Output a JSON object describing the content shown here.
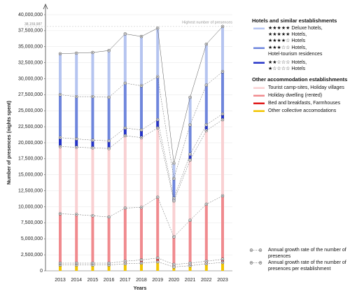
{
  "chart_data": {
    "type": "stacked-bar",
    "x_label": "Years",
    "y_label": "Number of presences (nights spent)",
    "categories": [
      "2013",
      "2014",
      "2015",
      "2016",
      "2017",
      "2018",
      "2019",
      "2020",
      "2021",
      "2022",
      "2023"
    ],
    "ylim": [
      0,
      40000000
    ],
    "yticks": [
      {
        "value": 0,
        "label": "0"
      },
      {
        "value": 2500000,
        "label": "2,500,000"
      },
      {
        "value": 5000000,
        "label": "5,000,000"
      },
      {
        "value": 7500000,
        "label": "7,500,000"
      },
      {
        "value": 10000000,
        "label": "10,000,000"
      },
      {
        "value": 12500000,
        "label": "12,500,000"
      },
      {
        "value": 15000000,
        "label": "15,000,000"
      },
      {
        "value": 17500000,
        "label": "17,500,000"
      },
      {
        "value": 20000000,
        "label": "20,000,000"
      },
      {
        "value": 22500000,
        "label": "22,500,000"
      },
      {
        "value": 25000000,
        "label": "25,000,000"
      },
      {
        "value": 27500000,
        "label": "27,500,000"
      },
      {
        "value": 30000000,
        "label": "30,000,000"
      },
      {
        "value": 32500000,
        "label": "32,500,000"
      },
      {
        "value": 35000000,
        "label": "35,000,000"
      },
      {
        "value": 37500000,
        "label": "37,500,000"
      },
      {
        "value": 40000000,
        "label": "40,000,000"
      }
    ],
    "grid": true,
    "series": [
      {
        "name": "Other collective accomodations",
        "color": "#f2c500",
        "values": [
          900000,
          900000,
          900000,
          900000,
          1100000,
          1200000,
          1400000,
          600000,
          800000,
          1100000,
          1300000
        ]
      },
      {
        "name": "Bed and breakfasts, Farmhouses",
        "color": "#e01a1a",
        "values": [
          300000,
          300000,
          300000,
          300000,
          400000,
          500000,
          600000,
          400000,
          400000,
          400000,
          500000
        ]
      },
      {
        "name": "Holiday dwelling (rented)",
        "color": "#f08a8e",
        "values": [
          7700000,
          7600000,
          7400000,
          7200000,
          8300000,
          8200000,
          9500000,
          4300000,
          6700000,
          8900000,
          9900000
        ]
      },
      {
        "name": "Tourist camp-sites, Holiday villages",
        "color": "#f9d0d2",
        "values": [
          10500000,
          10500000,
          10600000,
          10700000,
          11300000,
          10900000,
          10800000,
          5600000,
          9400000,
          11500000,
          11900000
        ]
      },
      {
        "name": "★★☆☆☆ Hotels,\n★☆☆☆☆ Hotels",
        "color": "#2433c8",
        "values": [
          1400000,
          1300000,
          1200000,
          1200000,
          1200000,
          1200000,
          1300000,
          400000,
          900000,
          900000,
          900000
        ]
      },
      {
        "name": "★★★☆☆ Hotels,\nHotel-tourism residences",
        "color": "#6f86dc",
        "values": [
          6700000,
          6600000,
          6800000,
          6800000,
          7000000,
          6900000,
          6700000,
          3100000,
          4600000,
          6200000,
          6600000
        ]
      },
      {
        "name": "★★★★★ Deluxe hotels,\n★★★★★ Hotels,\n★★★★☆ Hotels",
        "color": "#b5c4f0",
        "values": [
          6400000,
          6800000,
          6900000,
          7300000,
          7700000,
          7700000,
          7600000,
          2400000,
          4300000,
          6400000,
          7059987
        ]
      }
    ],
    "legend_titles": [
      "Hotels and similar establishments",
      "Other accommodation establishments"
    ],
    "legend_notes": [
      "Annual growth rate of the number of presences",
      "Annual growth rate of the number of presences per establishment"
    ],
    "annotation": {
      "text": "Highest number of presences",
      "value": 38159987,
      "label": "38,159,987"
    }
  }
}
